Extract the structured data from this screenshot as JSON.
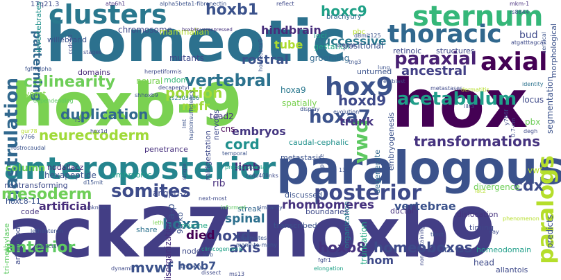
{
  "words": [
    {
      "text": "ack27-hoxb9",
      "color": "#433e85"
    },
    {
      "text": "homeotic",
      "color": "#2c718e"
    },
    {
      "text": "hoxb-9",
      "color": "#7ad151"
    },
    {
      "text": "hox",
      "color": "#440154"
    },
    {
      "text": "paralogous",
      "color": "#3b528b"
    },
    {
      "text": "anteroposterior",
      "color": "#25858e"
    },
    {
      "text": "sternum",
      "color": "#35b779"
    },
    {
      "text": "clusters",
      "color": "#2a788e"
    },
    {
      "text": "thoracic",
      "color": "#31688e"
    },
    {
      "text": "axial",
      "color": "#440154"
    },
    {
      "text": "hox9",
      "color": "#3b528b"
    },
    {
      "text": "posterior",
      "color": "#3e4a89"
    },
    {
      "text": "somites",
      "color": "#3e4c8a"
    },
    {
      "text": "gastrulation",
      "color": "#31688e"
    },
    {
      "text": "acetabulum",
      "color": "#1f9e89"
    },
    {
      "text": "paraxial",
      "color": "#482173"
    },
    {
      "text": "colinearity",
      "color": "#6ece58"
    },
    {
      "text": "vertebral",
      "color": "#2c728e"
    },
    {
      "text": "hoxa7",
      "color": "#3b528b"
    },
    {
      "text": "hoxd9",
      "color": "#3e4989"
    },
    {
      "text": "hoxb1",
      "color": "#3b528b"
    },
    {
      "text": "hoxc9",
      "color": "#1fa187"
    },
    {
      "text": "mesoderm",
      "color": "#6ece58"
    },
    {
      "text": "anterior",
      "color": "#5ec962"
    },
    {
      "text": "neurectoderm",
      "color": "#a0da39"
    },
    {
      "text": "duplication",
      "color": "#31688e"
    },
    {
      "text": "hoxa",
      "color": "#2d708e"
    },
    {
      "text": "hoxd",
      "color": "#3e4a89"
    },
    {
      "text": "homeoboxes",
      "color": "#3e4a89"
    },
    {
      "text": "transformations",
      "color": "#46337f"
    },
    {
      "text": "embryos",
      "color": "#453781"
    },
    {
      "text": "mvwf",
      "color": "#3b528b"
    },
    {
      "text": "axis",
      "color": "#3e4989"
    },
    {
      "text": "hoxb8",
      "color": "#46337f"
    },
    {
      "text": "cdx",
      "color": "#3e4c8a"
    },
    {
      "text": "paralogs",
      "color": "#b5de2b"
    },
    {
      "text": "vwd",
      "color": "#5ec962"
    },
    {
      "text": "hindbrain",
      "color": "#472d7b"
    },
    {
      "text": "patterning",
      "color": "#31688e"
    },
    {
      "text": "successive",
      "color": "#2a788e"
    },
    {
      "text": "tube",
      "color": "#addc30"
    },
    {
      "text": "rostral",
      "color": "#3b528b"
    },
    {
      "text": "ancestral",
      "color": "#424086"
    },
    {
      "text": "portion",
      "color": "#a0da39"
    },
    {
      "text": "ngfr",
      "color": "#a0da39"
    },
    {
      "text": "cord",
      "color": "#21908d"
    },
    {
      "text": "trunk",
      "color": "#463480"
    },
    {
      "text": "spinal",
      "color": "#2d708e"
    },
    {
      "text": "rhombomeres",
      "color": "#46327e"
    },
    {
      "text": "artificial",
      "color": "#472c7a"
    },
    {
      "text": "column",
      "color": "#6ece58"
    },
    {
      "text": "died",
      "color": "#440154"
    },
    {
      "text": "hom",
      "color": "#3e4a89"
    },
    {
      "text": "vertebrae",
      "color": "#3b528b"
    },
    {
      "text": "hoxb7",
      "color": "#3b528b"
    },
    {
      "text": "limb",
      "color": "#472a7a"
    },
    {
      "text": "willebrand",
      "color": "#3b528b"
    },
    {
      "text": "chromosome",
      "color": "#3e4989"
    },
    {
      "text": "mammalian",
      "color": "#b5de2b"
    },
    {
      "text": "mutants",
      "color": "#3f4889"
    },
    {
      "text": "domains",
      "color": "#482878"
    },
    {
      "text": "yeast",
      "color": "#84d44b"
    },
    {
      "text": "mdom",
      "color": "#35b779"
    },
    {
      "text": "neural",
      "color": "#7ad151"
    },
    {
      "text": "hoxa9",
      "color": "#2a788e"
    },
    {
      "text": "spatially",
      "color": "#7ad151"
    },
    {
      "text": "tead2",
      "color": "#46327e"
    },
    {
      "text": "cns",
      "color": "#440154"
    },
    {
      "text": "hexapeptide",
      "color": "#3b528b"
    },
    {
      "text": "nodallacz",
      "color": "#482475"
    },
    {
      "text": "embryonic",
      "color": "#1fa187"
    },
    {
      "text": "angptl-2",
      "color": "#3e4989"
    },
    {
      "text": "rib",
      "color": "#472f7d"
    },
    {
      "text": "penetrance",
      "color": "#472f7d"
    },
    {
      "text": "metastasis",
      "color": "#3b528b"
    },
    {
      "text": "caudal-cephalic",
      "color": "#21918c"
    },
    {
      "text": "discussed",
      "color": "#3b528b"
    },
    {
      "text": "streak",
      "color": "#31688e"
    },
    {
      "text": "boundaries",
      "color": "#3e4989"
    },
    {
      "text": "transcribed",
      "color": "#3b528b"
    },
    {
      "text": "murine",
      "color": "#22a884"
    },
    {
      "text": "node",
      "color": "#3e4a89"
    },
    {
      "text": "share",
      "color": "#2c728e"
    },
    {
      "text": "code",
      "color": "#46337f"
    },
    {
      "text": "bud",
      "color": "#3e4989"
    },
    {
      "text": "grooming",
      "color": "#31688e"
    },
    {
      "text": "gestation",
      "color": "#20a386"
    },
    {
      "text": "loci",
      "color": "#20a386"
    },
    {
      "text": "positional",
      "color": "#3b528b"
    },
    {
      "text": "structures",
      "color": "#3e4989"
    },
    {
      "text": "retinoic",
      "color": "#3e4989"
    },
    {
      "text": "unturned",
      "color": "#3b528b"
    },
    {
      "text": "ductal",
      "color": "#46327e"
    },
    {
      "text": "divergence",
      "color": "#6ece58"
    },
    {
      "text": "dislocation",
      "color": "#46327e"
    },
    {
      "text": "timing",
      "color": "#3e4989"
    },
    {
      "text": "truncation",
      "color": "#22a884"
    },
    {
      "text": "homeodomain",
      "color": "#1f9e89"
    },
    {
      "text": "head",
      "color": "#3e4a89"
    },
    {
      "text": "allantois",
      "color": "#3e4989"
    },
    {
      "text": "predicts",
      "color": "#3b528b"
    },
    {
      "text": "segmentation",
      "color": "#3b528b"
    },
    {
      "text": "morphological",
      "color": "#3b528b"
    },
    {
      "text": "organization",
      "color": "#2a788e"
    },
    {
      "text": "disorganization",
      "color": "#472f7d"
    },
    {
      "text": "tri-methylase",
      "color": "#5ec962"
    },
    {
      "text": "arthropods",
      "color": "#3e4989"
    },
    {
      "text": "embryogenesis",
      "color": "#3b528b"
    },
    {
      "text": "degenerate",
      "color": "#31688e"
    },
    {
      "text": "midgestation",
      "color": "#3e4989"
    },
    {
      "text": "nontransforming",
      "color": "#3e4a89"
    },
    {
      "text": "hoxc8-11",
      "color": "#3b528b"
    },
    {
      "text": "a-p",
      "color": "#3b528b"
    },
    {
      "text": "90-kb",
      "color": "#3b528b"
    },
    {
      "text": "invertebrates",
      "color": "#21918c"
    },
    {
      "text": "brachyury",
      "color": "#31688e"
    },
    {
      "text": "reflect",
      "color": "#3e4989"
    },
    {
      "text": "alpha5beta1-fibronectin",
      "color": "#3b528b"
    },
    {
      "text": "atp6h1",
      "color": "#472f7d"
    },
    {
      "text": "17q21.3",
      "color": "#3e4a89"
    },
    {
      "text": "mkm-1",
      "color": "#472f7d"
    },
    {
      "text": "rs8844",
      "color": "#3b528b"
    },
    {
      "text": "atgatttagcac",
      "color": "#3e4a89"
    },
    {
      "text": "pbc",
      "color": "#b5de2b"
    },
    {
      "text": "tng3",
      "color": "#3b528b"
    },
    {
      "text": "precise",
      "color": "#3e4989"
    },
    {
      "text": "d8mit125",
      "color": "#3b528b"
    },
    {
      "text": "stages",
      "color": "#3e4989"
    },
    {
      "text": "fgfrlalpha",
      "color": "#3b528b"
    },
    {
      "text": "ccdc40",
      "color": "#3e4989"
    },
    {
      "text": "homeobox9",
      "color": "#3b528b"
    },
    {
      "text": "hoxb9overexpressed",
      "color": "#46327e"
    },
    {
      "text": "herpetiformis",
      "color": "#3e4989"
    },
    {
      "text": "decapeptyl",
      "color": "#3e4a89"
    },
    {
      "text": "shhoxb9",
      "color": "#3b528b"
    },
    {
      "text": "dependending",
      "color": "#5ec962"
    },
    {
      "text": "rs2303486",
      "color": "#2a788e"
    },
    {
      "text": "haploinsufficiency",
      "color": "#3b528b"
    },
    {
      "text": "display",
      "color": "#3b528b"
    },
    {
      "text": "evolution",
      "color": "#3b528b"
    },
    {
      "text": "epiblast",
      "color": "#3b528b"
    },
    {
      "text": "metastases",
      "color": "#3e4989"
    },
    {
      "text": "identity",
      "color": "#2c728e"
    },
    {
      "text": "lung",
      "color": "#3b528b"
    },
    {
      "text": "locus",
      "color": "#3e4989"
    },
    {
      "text": "pbx",
      "color": "#6ece58"
    },
    {
      "text": "degh",
      "color": "#3e4989"
    },
    {
      "text": "temporal",
      "color": "#3b528b"
    },
    {
      "text": "proboscopedia",
      "color": "#1fa187"
    },
    {
      "text": "nervous",
      "color": "#3e4989"
    },
    {
      "text": "ccdc40links",
      "color": "#3e4989"
    },
    {
      "text": "d15mit",
      "color": "#3b528b"
    },
    {
      "text": "single",
      "color": "#3e4989"
    },
    {
      "text": "next-most",
      "color": "#3e4989"
    },
    {
      "text": "informed",
      "color": "#5ec962"
    },
    {
      "text": "similarity",
      "color": "#3b528b"
    },
    {
      "text": "plate",
      "color": "#3b528b"
    },
    {
      "text": "138",
      "color": "#3b528b"
    },
    {
      "text": "vwf",
      "color": "#b5de2b"
    },
    {
      "text": "leth",
      "color": "#7ad151"
    },
    {
      "text": "lethenteron",
      "color": "#3b528b"
    },
    {
      "text": "defects",
      "color": "#3e4989"
    },
    {
      "text": "clinicogenomic",
      "color": "#1fa187"
    },
    {
      "text": "cagemates",
      "color": "#3b528b"
    },
    {
      "text": "many-to-many",
      "color": "#3b528b"
    },
    {
      "text": "tbrct",
      "color": "#3b528b"
    },
    {
      "text": "day",
      "color": "#3e4989"
    },
    {
      "text": "noncontaining",
      "color": "#3e4989"
    },
    {
      "text": "ra",
      "color": "#3b528b"
    },
    {
      "text": "fgfr1",
      "color": "#3e4989"
    },
    {
      "text": "elongation",
      "color": "#1fa187"
    },
    {
      "text": "brittany",
      "color": "#3b528b"
    },
    {
      "text": "a9b",
      "color": "#3b528b"
    },
    {
      "text": "dissect",
      "color": "#3e4989"
    },
    {
      "text": "ms13",
      "color": "#3e4989"
    },
    {
      "text": "dynamic",
      "color": "#3e4989"
    },
    {
      "text": "gur78",
      "color": "#b5de2b"
    },
    {
      "text": "y766",
      "color": "#3b528b"
    },
    {
      "text": "r5",
      "color": "#3e4989"
    },
    {
      "text": "hox1d",
      "color": "#3e4989"
    },
    {
      "text": "rostrocaudal",
      "color": "#3b528b"
    },
    {
      "text": "lmt",
      "color": "#3b528b"
    },
    {
      "text": "unknown",
      "color": "#3e4989"
    },
    {
      "text": "y766f",
      "color": "#3e4989"
    },
    {
      "text": "0.7-cm",
      "color": "#3e4989"
    },
    {
      "text": "lilr3",
      "color": "#3b528b"
    },
    {
      "text": "cervical",
      "color": "#3b528b"
    },
    {
      "text": "dermatitis",
      "color": "#b5de2b"
    },
    {
      "text": "lacz",
      "color": "#b5de2b"
    },
    {
      "text": "phenomenon",
      "color": "#b5de2b"
    }
  ]
}
